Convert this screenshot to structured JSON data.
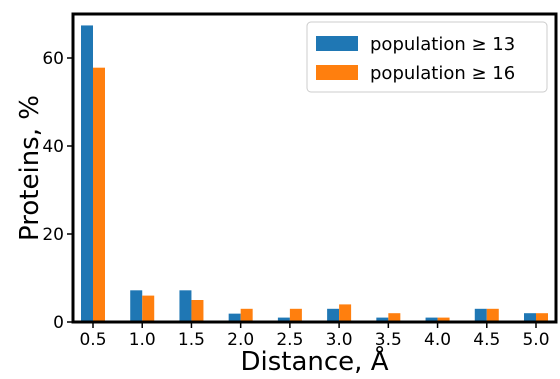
{
  "chart_data": {
    "type": "bar",
    "title": "",
    "xlabel": "Distance, Å",
    "ylabel": "Proteins, %",
    "categories": [
      "0.5",
      "1.0",
      "1.5",
      "2.0",
      "2.5",
      "3.0",
      "3.5",
      "4.0",
      "4.5",
      "5.0"
    ],
    "series": [
      {
        "name": "population ≥ 13",
        "color": "#1f77b4",
        "values": [
          67.4,
          7.2,
          7.2,
          1.9,
          1.0,
          3.0,
          1.0,
          1.0,
          3.0,
          2.0
        ]
      },
      {
        "name": "population ≥ 16",
        "color": "#ff7f0e",
        "values": [
          57.8,
          6.0,
          5.0,
          3.0,
          3.0,
          4.0,
          2.0,
          1.0,
          3.0,
          2.0
        ]
      }
    ],
    "ylim": [
      0,
      70
    ],
    "yticks": [
      0,
      20,
      40,
      60
    ],
    "grid": false,
    "legend_position": "top-right"
  }
}
